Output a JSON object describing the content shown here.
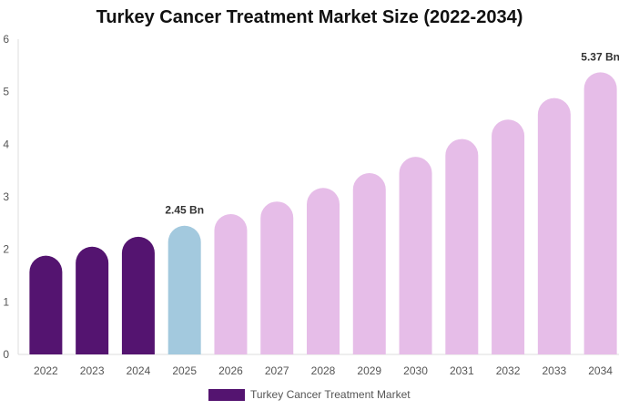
{
  "chart_data": {
    "type": "bar",
    "title": "Turkey Cancer Treatment Market Size (2022-2034)",
    "categories": [
      "2022",
      "2023",
      "2024",
      "2025",
      "2026",
      "2027",
      "2028",
      "2029",
      "2030",
      "2031",
      "2032",
      "2033",
      "2034"
    ],
    "series": [
      {
        "name": "Turkey Cancer Treatment Market",
        "values": [
          1.88,
          2.05,
          2.24,
          2.45,
          2.67,
          2.91,
          3.17,
          3.45,
          3.76,
          4.1,
          4.47,
          4.88,
          5.37
        ]
      }
    ],
    "bar_colors": [
      "#541470",
      "#541470",
      "#541470",
      "#a3c9de",
      "#e6bde8",
      "#e6bde8",
      "#e6bde8",
      "#e6bde8",
      "#e6bde8",
      "#e6bde8",
      "#e6bde8",
      "#e6bde8",
      "#e6bde8"
    ],
    "data_labels": [
      {
        "category": "2025",
        "text": "2.45 Bn"
      },
      {
        "category": "2034",
        "text": "5.37 Bn"
      }
    ],
    "ylim": [
      0,
      6
    ],
    "yticks": [
      "0",
      "1",
      "2",
      "3",
      "4",
      "5",
      "6"
    ],
    "xlabel": "",
    "ylabel": "",
    "grid": false,
    "legend_position": "bottom",
    "legend_color": "#541470"
  }
}
